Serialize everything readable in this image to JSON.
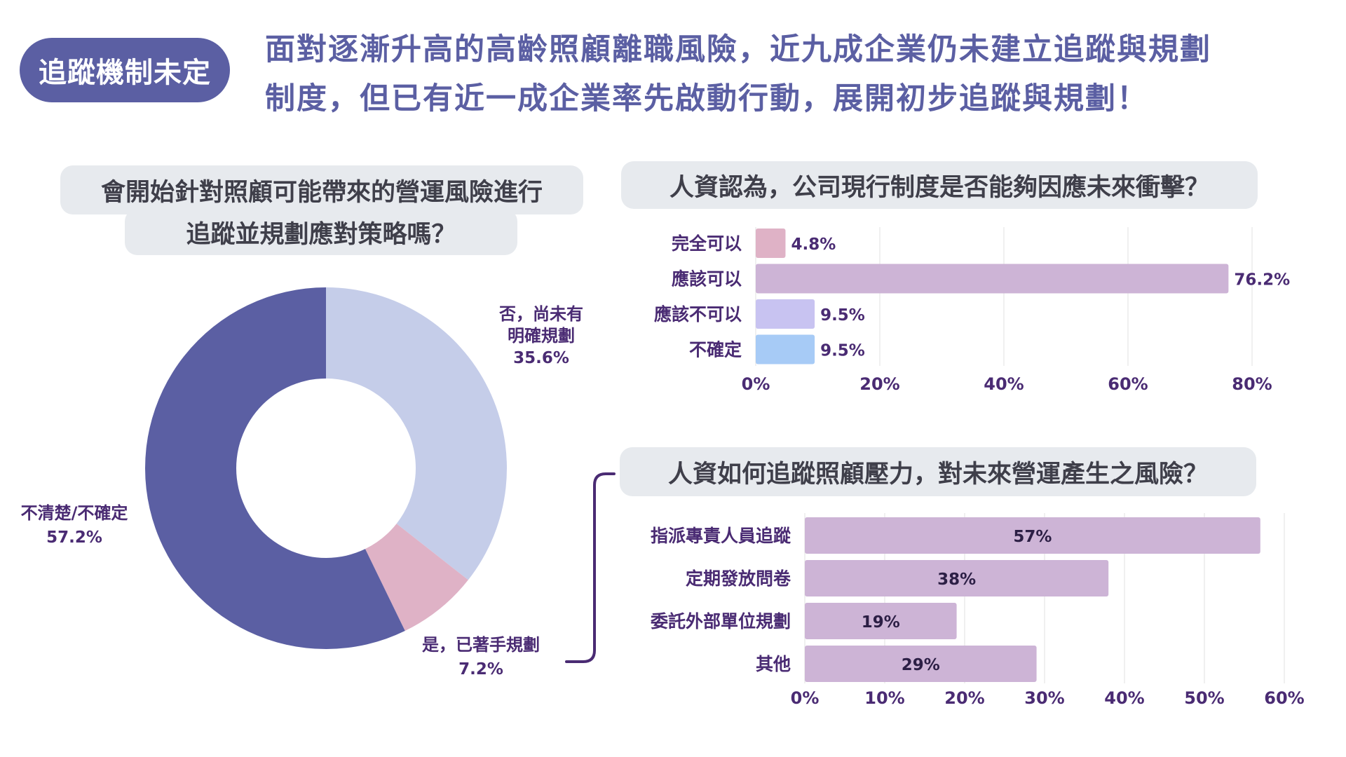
{
  "tag": "追蹤機制未定",
  "headline": {
    "line1": "面對逐漸升高的高齡照顧離職風險，近九成企業仍未建立追蹤與規劃",
    "line2": "制度，但已有近一成企業率先啟動行動，展開初步追蹤與規劃！"
  },
  "colors": {
    "primary": "#5b5fa3",
    "donut_no": "#c5cde9",
    "donut_yes": "#dfb2c6",
    "donut_unsure": "#5b5fa3",
    "bar_pink": "#dfb2c6",
    "bar_purple": "#cdb4d6",
    "bar_lavender": "#c8c3f1",
    "bar_blue": "#a7cbf6",
    "label_text": "#4a2b73"
  },
  "chart_data": [
    {
      "type": "pie",
      "title_line1": "會開始針對照顧可能帶來的營運風險進行",
      "title_line2": "追蹤並規劃應對策略嗎？",
      "slices": [
        {
          "label_line1": "否，尚未有",
          "label_line2": "明確規劃",
          "value": 35.6,
          "value_label": "35.6%"
        },
        {
          "label_line1": "是，已著手規劃",
          "label_line2": "",
          "value": 7.2,
          "value_label": "7.2%"
        },
        {
          "label_line1": "不清楚/不確定",
          "label_line2": "",
          "value": 57.2,
          "value_label": "57.2%"
        }
      ]
    },
    {
      "type": "bar",
      "orientation": "horizontal",
      "title": "人資認為，公司現行制度是否能夠因應未來衝擊？",
      "categories": [
        "完全可以",
        "應該可以",
        "應該不可以",
        "不確定"
      ],
      "values": [
        4.8,
        76.2,
        9.5,
        9.5
      ],
      "value_labels": [
        "4.8%",
        "76.2%",
        "9.5%",
        "9.5%"
      ],
      "xlim": [
        0,
        80
      ],
      "xticks": [
        "0%",
        "20%",
        "40%",
        "60%",
        "80%"
      ],
      "grid": true
    },
    {
      "type": "bar",
      "orientation": "horizontal",
      "title": "人資如何追蹤照顧壓力，對未來營運產生之風險？",
      "categories": [
        "指派專責人員追蹤",
        "定期發放問卷",
        "委託外部單位規劃",
        "其他"
      ],
      "values": [
        57,
        38,
        19,
        29
      ],
      "value_labels": [
        "57%",
        "38%",
        "19%",
        "29%"
      ],
      "xlim": [
        0,
        60
      ],
      "xticks": [
        "0%",
        "10%",
        "20%",
        "30%",
        "40%",
        "50%",
        "60%"
      ],
      "grid": true
    }
  ]
}
